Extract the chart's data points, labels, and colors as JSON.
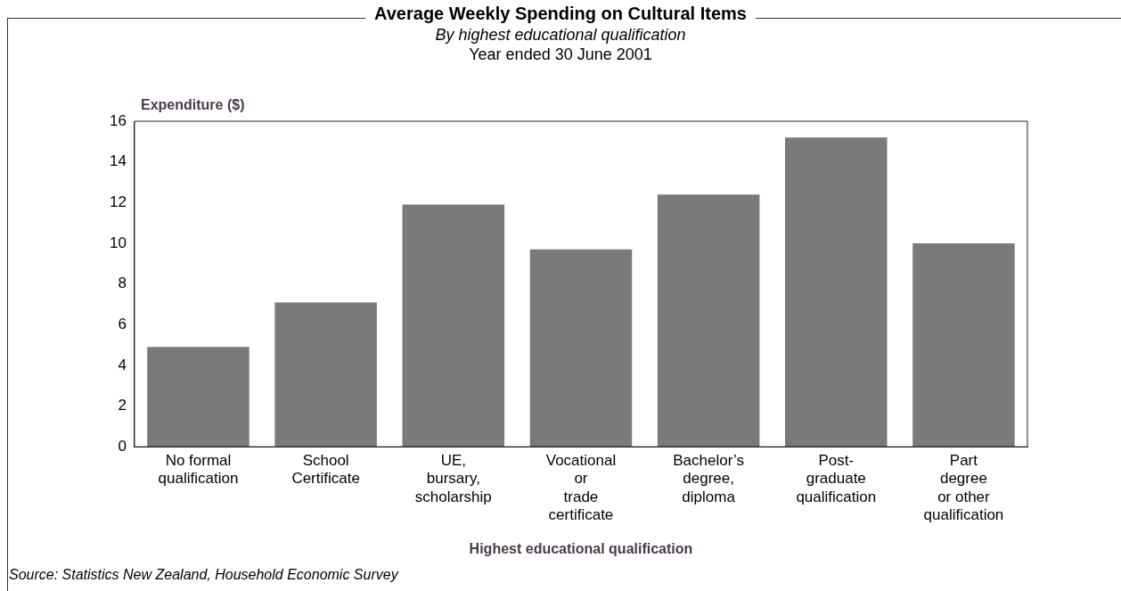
{
  "chart_data": {
    "type": "bar",
    "title": "Average Weekly Spending on Cultural Items",
    "subtitle": "By highest educational qualification",
    "categories": [
      "No formal\nqualification",
      "School\nCertificate",
      "UE,\nbursary,\nscholarship",
      "Vocational\nor\ntrade\ncertificate",
      "Bachelor’s\ndegree,\ndiploma",
      "Post-\ngraduate\nqualification",
      "Part\ndegree\nor other\nqualification"
    ],
    "values": [
      4.9,
      7.1,
      11.9,
      9.7,
      12.4,
      15.2,
      10.0
    ],
    "color": "#7a7a7a",
    "ylim": [
      0,
      16
    ],
    "yticks": [
      0,
      2,
      4,
      6,
      8,
      10,
      12,
      14,
      16
    ],
    "grid": false,
    "ylabel": "Expenditure ($)",
    "xlabel": "Highest educational qualification",
    "annotations": [
      "Year ended 30 June 2001",
      "Source: Statistics New Zealand, Household Economic Survey"
    ]
  }
}
